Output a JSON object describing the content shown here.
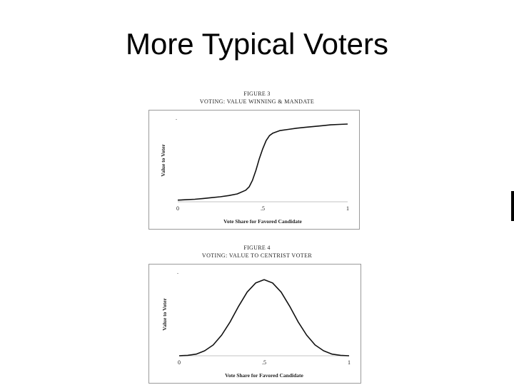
{
  "slide": {
    "title": "More Typical Voters"
  },
  "chart_data": [
    {
      "type": "line",
      "figure_label": "FIGURE 3",
      "title": "VOTING: VALUE WINNING & MANDATE",
      "xlabel": "Vote Share for Favored Candidate",
      "ylabel": "Value to Voter",
      "xlim": [
        0,
        1
      ],
      "ylim": [
        0,
        1
      ],
      "x_ticks": [
        {
          "value": 0,
          "label": "0"
        },
        {
          "value": 0.5,
          "label": ".5"
        },
        {
          "value": 1,
          "label": "1"
        }
      ],
      "y_ticks": [
        {
          "value": 1,
          "label": "."
        }
      ],
      "grid": false,
      "series": [
        {
          "x": [
            0,
            0.05,
            0.1,
            0.15,
            0.2,
            0.25,
            0.3,
            0.35,
            0.4,
            0.42,
            0.44,
            0.46,
            0.48,
            0.5,
            0.52,
            0.54,
            0.56,
            0.58,
            0.6,
            0.65,
            0.7,
            0.75,
            0.8,
            0.85,
            0.9,
            0.95,
            1
          ],
          "y": [
            0.02,
            0.025,
            0.03,
            0.04,
            0.05,
            0.06,
            0.075,
            0.095,
            0.14,
            0.18,
            0.26,
            0.38,
            0.52,
            0.64,
            0.74,
            0.8,
            0.83,
            0.845,
            0.86,
            0.875,
            0.89,
            0.9,
            0.91,
            0.92,
            0.93,
            0.935,
            0.94
          ]
        }
      ]
    },
    {
      "type": "line",
      "figure_label": "FIGURE 4",
      "title": "VOTING: VALUE TO CENTRIST VOTER",
      "xlabel": "Vote Share for Favored Candidate",
      "ylabel": "Value to Voter",
      "xlim": [
        0,
        1
      ],
      "ylim": [
        0,
        1
      ],
      "x_ticks": [
        {
          "value": 0,
          "label": "0"
        },
        {
          "value": 0.5,
          "label": ".5"
        },
        {
          "value": 1,
          "label": "1"
        }
      ],
      "y_ticks": [
        {
          "value": 1,
          "label": "."
        }
      ],
      "grid": false,
      "series": [
        {
          "x": [
            0,
            0.05,
            0.1,
            0.15,
            0.2,
            0.25,
            0.3,
            0.35,
            0.4,
            0.45,
            0.5,
            0.55,
            0.6,
            0.65,
            0.7,
            0.75,
            0.8,
            0.85,
            0.9,
            0.95,
            1
          ],
          "y": [
            0.0,
            0.005,
            0.02,
            0.06,
            0.13,
            0.25,
            0.41,
            0.6,
            0.77,
            0.88,
            0.92,
            0.88,
            0.77,
            0.6,
            0.41,
            0.25,
            0.13,
            0.06,
            0.02,
            0.005,
            0.0
          ]
        }
      ]
    }
  ]
}
